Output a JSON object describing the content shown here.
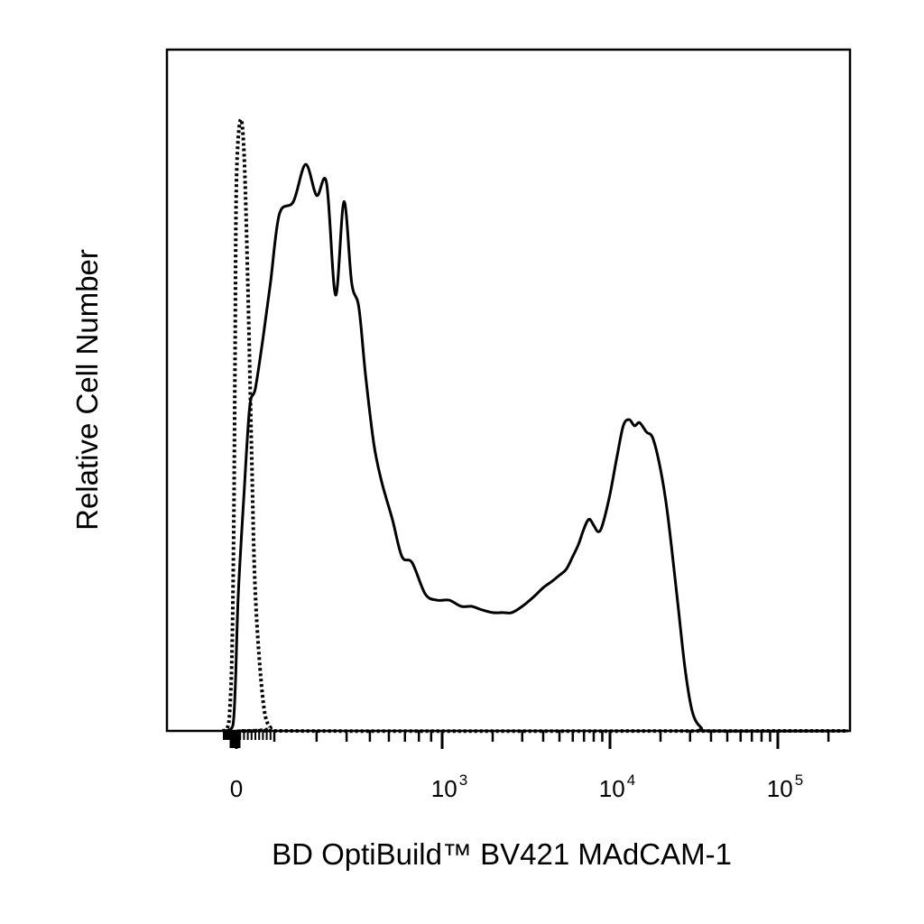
{
  "chart_data": {
    "type": "line",
    "title": "",
    "xlabel": "BD OptiBuild™ BV421 MAdCAM-1",
    "ylabel": "Relative Cell Number",
    "x_scale": "biexponential",
    "x_ticks": [
      {
        "value": 0,
        "base": "0",
        "exp": ""
      },
      {
        "value": 1000,
        "base": "10",
        "exp": "3"
      },
      {
        "value": 10000,
        "base": "10",
        "exp": "4"
      },
      {
        "value": 100000,
        "base": "10",
        "exp": "5"
      }
    ],
    "xlim": [
      -300,
      262144
    ],
    "ylim": [
      0,
      100
    ],
    "grid": false,
    "series": [
      {
        "style": "dotted",
        "color": "#000000",
        "x": [
          -300,
          -200,
          -150,
          -100,
          -60,
          -30,
          0,
          20,
          40,
          60,
          80,
          100,
          140,
          180,
          220,
          262144
        ],
        "y": [
          0,
          0.5,
          3,
          12,
          32,
          60,
          88,
          98,
          93,
          72,
          45,
          22,
          5,
          0.5,
          0,
          0
        ]
      },
      {
        "style": "solid",
        "color": "#000000",
        "x": [
          -300,
          -120,
          -60,
          -20,
          10,
          40,
          70,
          100,
          140,
          180,
          210,
          240,
          270,
          300,
          330,
          360,
          390,
          420,
          450,
          480,
          520,
          560,
          620,
          680,
          750,
          850,
          950,
          1100,
          1300,
          1500,
          1700,
          2000,
          2300,
          2600,
          3000,
          3500,
          4000,
          4500,
          5000,
          5500,
          6000,
          6500,
          7000,
          7500,
          8000,
          8500,
          9000,
          10000,
          11000,
          12000,
          13000,
          14000,
          15000,
          16500,
          18000,
          20000,
          22000,
          25000,
          28000,
          31000,
          35000,
          40000,
          262144
        ],
        "y": [
          0,
          0.3,
          2,
          8,
          22,
          38,
          52,
          55,
          63,
          72,
          83,
          85,
          91,
          86,
          88,
          70,
          85,
          72,
          68,
          57,
          46,
          40,
          34,
          28,
          27,
          22,
          21,
          21,
          20,
          20,
          19.5,
          19,
          19,
          19,
          20,
          21.5,
          23,
          24,
          25,
          26,
          28,
          30,
          32.5,
          34,
          33,
          32,
          33,
          38,
          44,
          49,
          50,
          49,
          49.5,
          48,
          47,
          42,
          35,
          22,
          10,
          3,
          0.5,
          0,
          0
        ]
      }
    ]
  }
}
